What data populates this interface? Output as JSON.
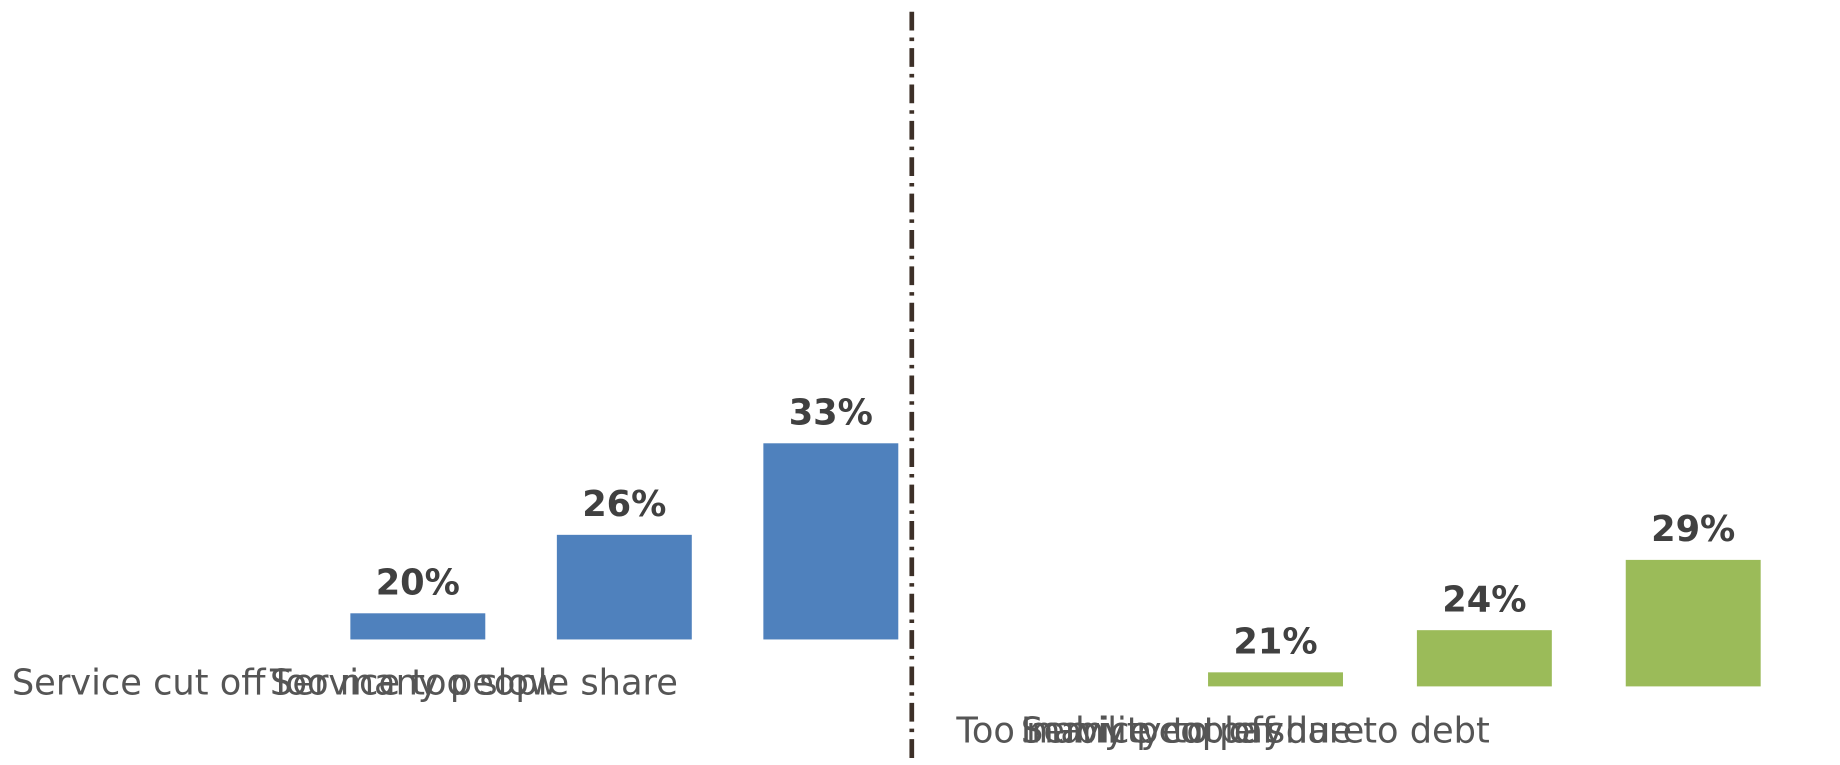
{
  "chart_data": [
    {
      "type": "bar",
      "categories": [
        "Service cut off",
        "Too many people share",
        "Service too slow"
      ],
      "values": [
        20,
        26,
        33
      ],
      "value_labels": [
        "20%",
        "26%",
        "33%"
      ],
      "color": "#4f81bd",
      "ylim": [
        18,
        66
      ]
    },
    {
      "type": "bar",
      "categories": [
        "Too many people share",
        "Service cut off due to debt",
        "Inability to pay"
      ],
      "values": [
        21,
        24,
        29
      ],
      "value_labels": [
        "21%",
        "24%",
        "29%"
      ],
      "color": "#9bbb59",
      "ylim": [
        20,
        68
      ]
    }
  ]
}
